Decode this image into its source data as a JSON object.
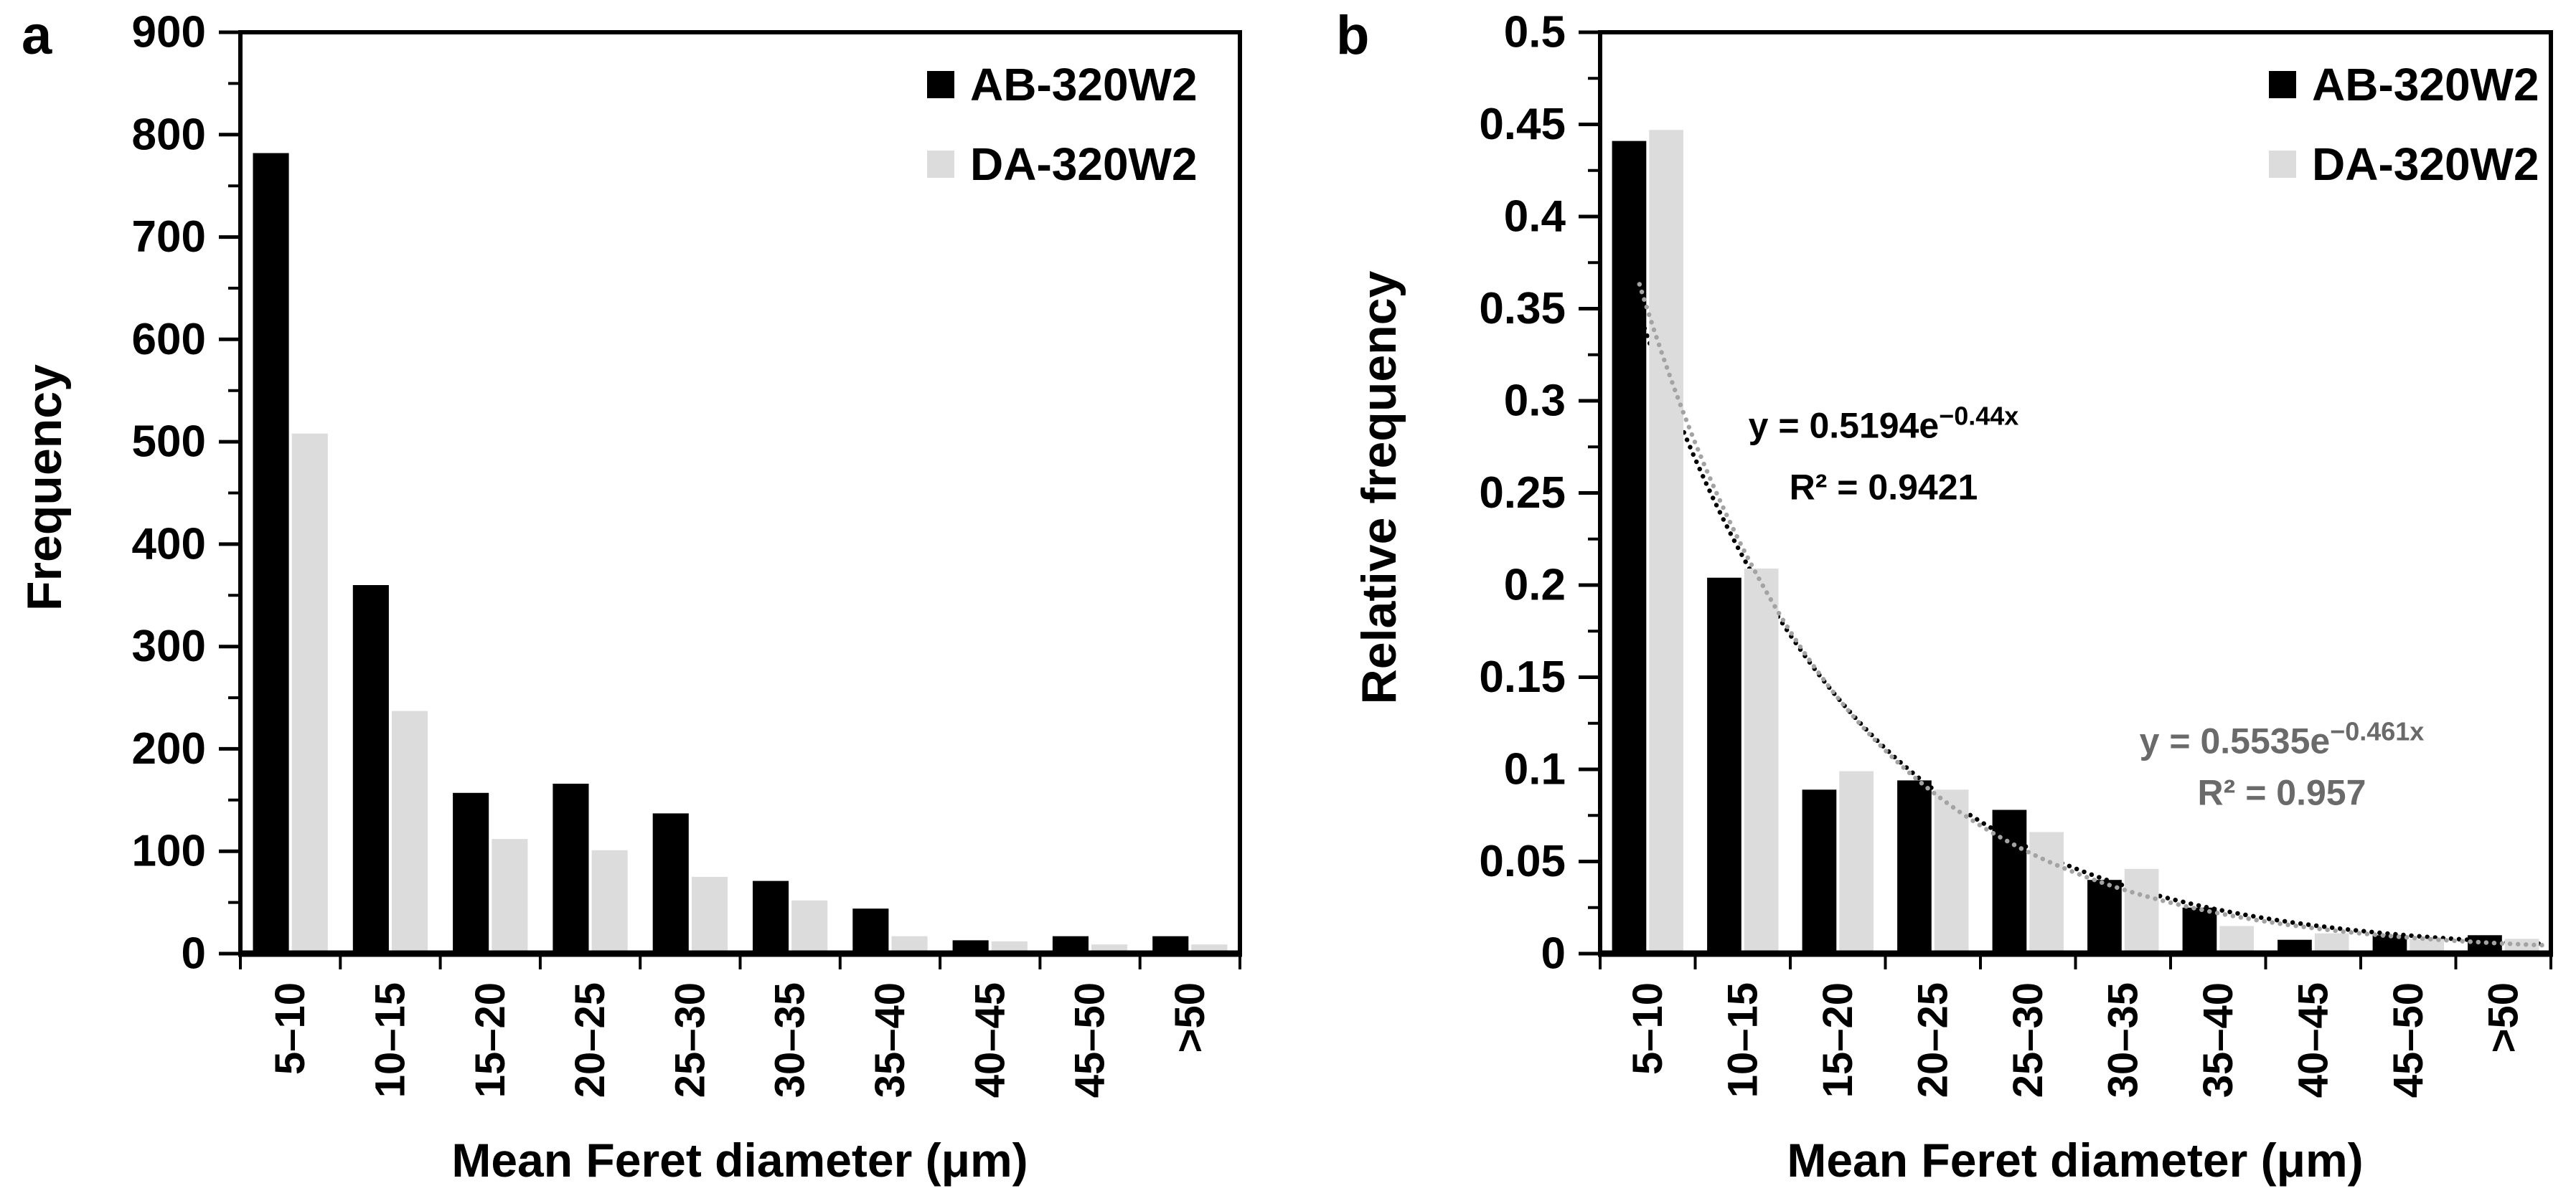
{
  "figure": {
    "panels": [
      {
        "label": "a",
        "ylabel": "Frequency",
        "xlabel": "Mean Feret diameter (μm)"
      },
      {
        "label": "b",
        "ylabel": "Relative frequency",
        "xlabel": "Mean Feret diameter (μm)"
      }
    ]
  },
  "chart_data": [
    {
      "type": "bar",
      "panel": "a",
      "title": "",
      "categories": [
        "5–10",
        "10–15",
        "15–20",
        "20–25",
        "25–30",
        "30–35",
        "35–40",
        "40–45",
        "45–50",
        ">50"
      ],
      "series": [
        {
          "name": "AB-320W2",
          "color": "#000000",
          "values": [
            782,
            360,
            157,
            166,
            137,
            71,
            44,
            13,
            17,
            17
          ]
        },
        {
          "name": "DA-320W2",
          "color": "#dcdcdc",
          "values": [
            508,
            237,
            112,
            101,
            75,
            52,
            17,
            12,
            9,
            9
          ]
        }
      ],
      "xlabel": "Mean Feret diameter (μm)",
      "ylabel": "Frequency",
      "ylim": [
        0,
        900
      ],
      "ytick_major": 100,
      "ytick_minor": 50,
      "ytick_labels": [
        "0",
        "100",
        "200",
        "300",
        "400",
        "500",
        "600",
        "700",
        "800",
        "900"
      ],
      "legend_position": "top-right",
      "grid": false
    },
    {
      "type": "bar",
      "panel": "b",
      "title": "",
      "categories": [
        "5–10",
        "10–15",
        "15–20",
        "20–25",
        "25–30",
        "30–35",
        "35–40",
        "40–45",
        "45–50",
        ">50"
      ],
      "series": [
        {
          "name": "AB-320W2",
          "color": "#000000",
          "values": [
            0.441,
            0.204,
            0.089,
            0.094,
            0.078,
            0.04,
            0.025,
            0.0075,
            0.01,
            0.01
          ]
        },
        {
          "name": "DA-320W2",
          "color": "#dcdcdc",
          "values": [
            0.447,
            0.209,
            0.099,
            0.089,
            0.066,
            0.046,
            0.015,
            0.011,
            0.008,
            0.008
          ]
        }
      ],
      "xlabel": "Mean Feret diameter (μm)",
      "ylabel": "Relative frequency",
      "ylim": [
        0,
        0.5
      ],
      "ytick_major": 0.05,
      "ytick_minor": 0.025,
      "ytick_labels": [
        "0",
        "0.05",
        "0.1",
        "0.15",
        "0.2",
        "0.25",
        "0.3",
        "0.35",
        "0.4",
        "0.45",
        "0.5"
      ],
      "legend_position": "top-right",
      "grid": false,
      "trendlines": [
        {
          "series": "AB-320W2",
          "type": "exponential",
          "a": 0.5194,
          "b": -0.44,
          "r2": 0.9421,
          "equation_prefix": "y = 0.5194e",
          "equation_exponent": "−0.44x",
          "r_squared_label": "R² = 0.9421",
          "color": "#000000",
          "line_style": "dotted"
        },
        {
          "series": "DA-320W2",
          "type": "exponential",
          "a": 0.5535,
          "b": -0.461,
          "r2": 0.957,
          "equation_prefix": "y = 0.5535e",
          "equation_exponent": "−0.461x",
          "r_squared_label": "R² = 0.957",
          "color": "#6a6a6a",
          "line_style": "dotted"
        }
      ]
    }
  ]
}
